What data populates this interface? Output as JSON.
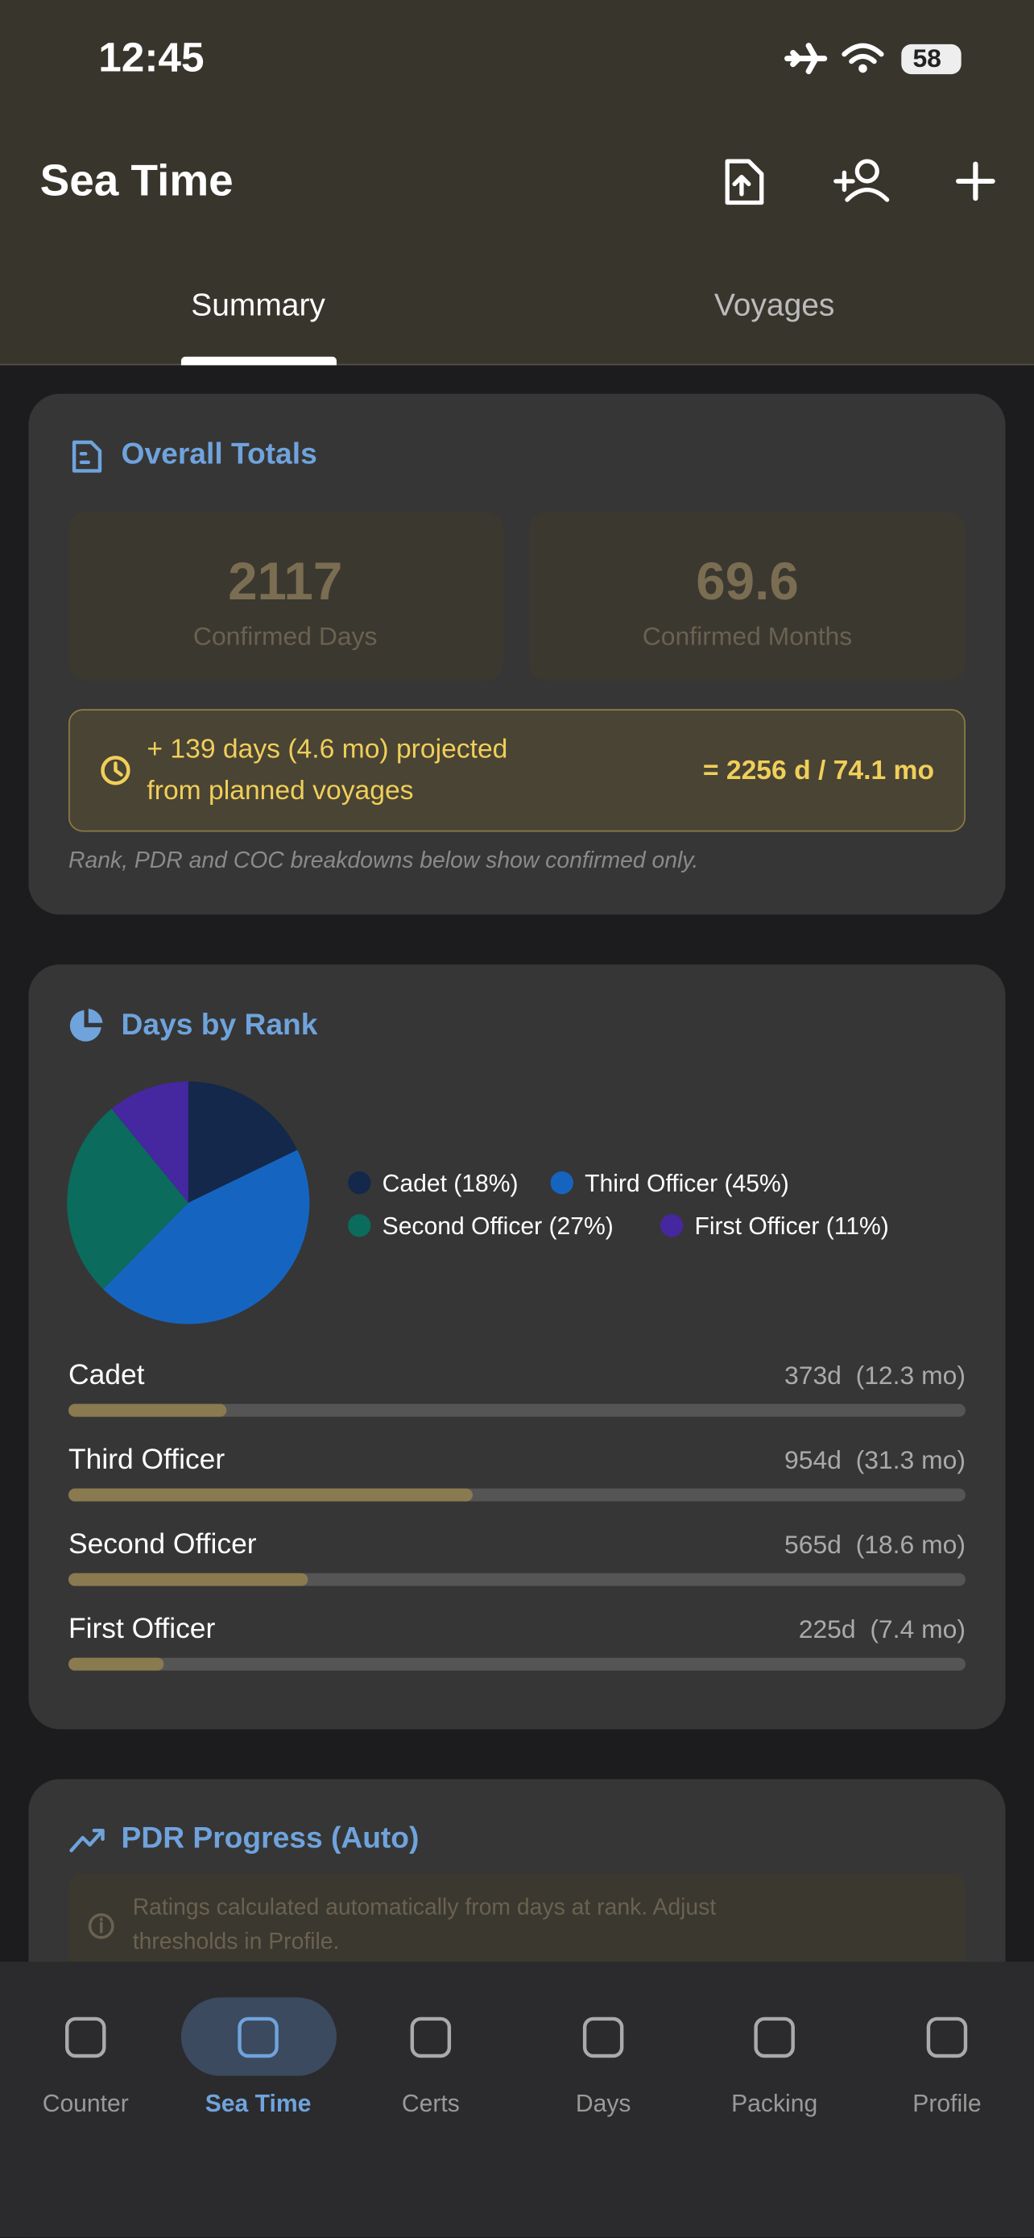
{
  "status_bar": {
    "time": "12:45",
    "battery": "58"
  },
  "header": {
    "title": "Sea Time",
    "tabs": [
      "Summary",
      "Voyages"
    ]
  },
  "overall_totals": {
    "title": "Overall Totals",
    "confirmed_days": {
      "value": 2117,
      "label": "Confirmed Days"
    },
    "confirmed_months": {
      "value": "69.6",
      "label": "Confirmed Months"
    },
    "projection": {
      "line1": "+ 139 days  (4.6 mo) projected",
      "line2": "from planned voyages",
      "total": "= 2256 d  / 74.1 mo"
    },
    "note": "Rank, PDR and COC breakdowns below show confirmed only."
  },
  "days_by_rank": {
    "title": "Days by Rank",
    "rows": [
      {
        "name": "Cadet",
        "days": 373,
        "label": "373d  (12.3 mo)"
      },
      {
        "name": "Third Officer",
        "days": 954,
        "label": "954d  (31.3 mo)"
      },
      {
        "name": "Second Officer",
        "days": 565,
        "label": "565d  (18.6 mo)"
      },
      {
        "name": "First Officer",
        "days": 225,
        "label": "225d  (7.4 mo)"
      }
    ]
  },
  "chart_data": {
    "type": "pie",
    "categories": [
      "Cadet",
      "Third Officer",
      "Second Officer",
      "First Officer"
    ],
    "values": [
      18,
      45,
      27,
      11
    ],
    "value_labels": [
      "Cadet (18%)",
      "Third Officer (45%)",
      "Second Officer (27%)",
      "First Officer (11%)"
    ],
    "colors": [
      "#13284a",
      "#1565c0",
      "#0b6b5c",
      "#4527a0"
    ]
  },
  "pdr_progress": {
    "title": "PDR Progress (Auto)",
    "info_line1": "Ratings calculated automatically from days at rank. Adjust",
    "info_line2": "thresholds in Profile."
  },
  "bottom_nav": {
    "items": [
      "Counter",
      "Sea Time",
      "Certs",
      "Days",
      "Packing",
      "Profile"
    ],
    "active": 1
  }
}
